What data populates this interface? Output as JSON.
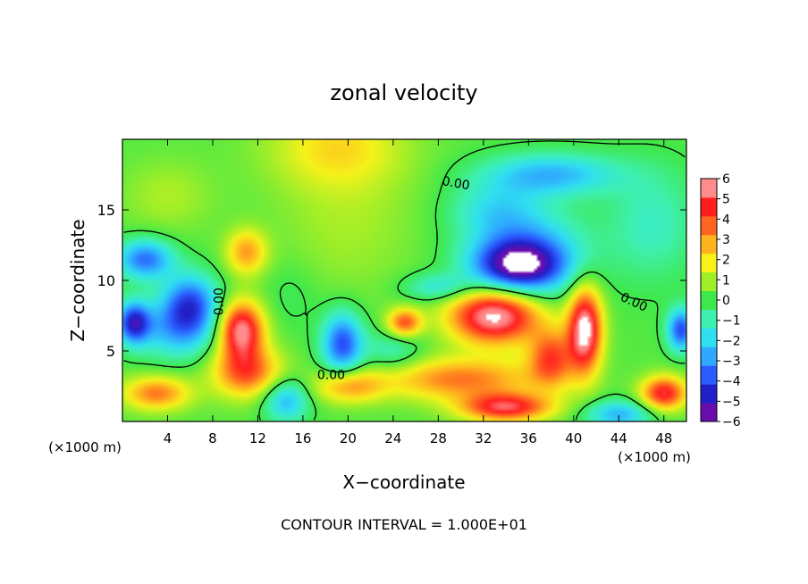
{
  "chart_data": {
    "type": "heatmap",
    "title": "zonal velocity",
    "xlabel": "X−coordinate",
    "ylabel": "Z−coordinate",
    "x_unit_left": "(×1000 m)",
    "x_unit_right": "(×1000 m)",
    "xlim": [
      0,
      50
    ],
    "ylim": [
      0,
      20
    ],
    "x_ticks": [
      4,
      8,
      12,
      16,
      20,
      24,
      28,
      32,
      36,
      40,
      44,
      48
    ],
    "y_ticks": [
      5,
      10,
      15
    ],
    "footer": "CONTOUR INTERVAL = 1.000E+01",
    "colorbar": {
      "min": -6,
      "max": 6,
      "tick_labels": [
        "6",
        "5",
        "4",
        "3",
        "2",
        "1",
        "0",
        "−1",
        "−2",
        "−3",
        "−4",
        "−5",
        "−6"
      ],
      "colors": [
        "#6a0dad",
        "#2020c8",
        "#2a5cff",
        "#2fa8ff",
        "#30e0f0",
        "#3ef0b0",
        "#3fe84a",
        "#a0ee28",
        "#f6f21a",
        "#ffb41e",
        "#ff6420",
        "#ff1e1e",
        "#ff8c8c"
      ]
    },
    "contour_labels": [
      {
        "text": "0.00",
        "x": 29.5,
        "y": 16.6,
        "rotate": 10
      },
      {
        "text": "0.00",
        "x": 8.9,
        "y": 8.5,
        "rotate": -90
      },
      {
        "text": "0.00",
        "x": 18.5,
        "y": 3.0,
        "rotate": 0
      },
      {
        "text": "0.00",
        "x": 45.2,
        "y": 8.2,
        "rotate": 25
      }
    ],
    "field_blobs": [
      {
        "x": 19,
        "y": 19.5,
        "sx": 6,
        "sy": 3,
        "v": 2.0
      },
      {
        "x": 11,
        "y": 12,
        "sx": 1.8,
        "sy": 1.6,
        "v": 3.0
      },
      {
        "x": 20,
        "y": 14,
        "sx": 6,
        "sy": 5,
        "v": 0.8
      },
      {
        "x": 4,
        "y": 16,
        "sx": 4,
        "sy": 2.5,
        "v": 0.9
      },
      {
        "x": 2,
        "y": 11.5,
        "sx": 2.5,
        "sy": 1.4,
        "v": -4.0
      },
      {
        "x": 6,
        "y": 8.5,
        "sx": 2.5,
        "sy": 2.0,
        "v": -4.0
      },
      {
        "x": 5,
        "y": 6.5,
        "sx": 3.5,
        "sy": 2.0,
        "v": -3.0
      },
      {
        "x": 3,
        "y": 2,
        "sx": 3,
        "sy": 1.2,
        "v": 3.5
      },
      {
        "x": 1,
        "y": 7,
        "sx": 1.5,
        "sy": 1.5,
        "v": -5.0
      },
      {
        "x": 10.5,
        "y": 6.5,
        "sx": 2.0,
        "sy": 2.0,
        "v": 6.0
      },
      {
        "x": 11,
        "y": 3.5,
        "sx": 3.0,
        "sy": 1.8,
        "v": 4.0
      },
      {
        "x": 14.5,
        "y": 1.5,
        "sx": 2.0,
        "sy": 1.5,
        "v": -3.0
      },
      {
        "x": 19.5,
        "y": 5.5,
        "sx": 1.8,
        "sy": 2.2,
        "v": -4.5
      },
      {
        "x": 20,
        "y": 2.5,
        "sx": 3.0,
        "sy": 1.2,
        "v": 3.0
      },
      {
        "x": 25,
        "y": 7,
        "sx": 1.5,
        "sy": 1.0,
        "v": 4.0
      },
      {
        "x": 24,
        "y": 5,
        "sx": 2.5,
        "sy": 1.5,
        "v": -1.5
      },
      {
        "x": 33,
        "y": 7.5,
        "sx": 4.0,
        "sy": 2.0,
        "v": 6.5
      },
      {
        "x": 30,
        "y": 3.0,
        "sx": 7.0,
        "sy": 1.5,
        "v": 3.5
      },
      {
        "x": 34,
        "y": 1.0,
        "sx": 4.0,
        "sy": 1.0,
        "v": 5.0
      },
      {
        "x": 41,
        "y": 6.5,
        "sx": 1.5,
        "sy": 3.0,
        "v": 6.5
      },
      {
        "x": 38,
        "y": 4.5,
        "sx": 2.0,
        "sy": 2.0,
        "v": 4.0
      },
      {
        "x": 35,
        "y": 11,
        "sx": 4.0,
        "sy": 1.8,
        "v": -5.0
      },
      {
        "x": 36,
        "y": 12,
        "sx": 5.0,
        "sy": 3.0,
        "v": -3.0
      },
      {
        "x": 38,
        "y": 17.5,
        "sx": 6.0,
        "sy": 1.5,
        "v": -3.0
      },
      {
        "x": 33,
        "y": 15,
        "sx": 4.0,
        "sy": 2.0,
        "v": -1.8
      },
      {
        "x": 47,
        "y": 14,
        "sx": 4.0,
        "sy": 4.0,
        "v": -1.5
      },
      {
        "x": 49.5,
        "y": 6.5,
        "sx": 1.2,
        "sy": 1.5,
        "v": -4.5
      },
      {
        "x": 48,
        "y": 2.0,
        "sx": 2.0,
        "sy": 1.2,
        "v": 5.0
      },
      {
        "x": 44,
        "y": 0.5,
        "sx": 3.0,
        "sy": 1.0,
        "v": -3.0
      },
      {
        "x": 15,
        "y": 9,
        "sx": 2.5,
        "sy": 2.5,
        "v": -0.5
      },
      {
        "x": 28,
        "y": 9.5,
        "sx": 3.0,
        "sy": 1.0,
        "v": -2.0
      }
    ],
    "grid": false,
    "legend": "right"
  }
}
